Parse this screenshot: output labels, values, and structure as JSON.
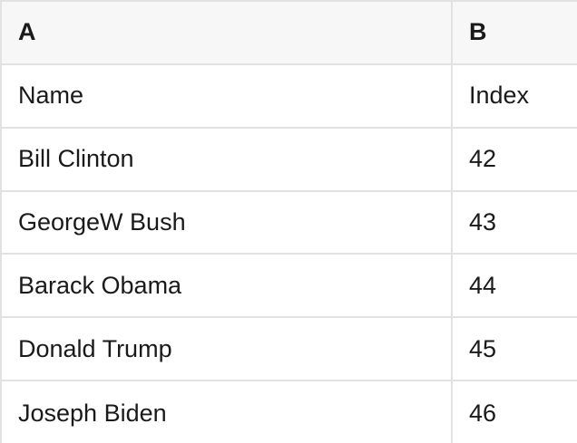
{
  "table": {
    "column_headers": [
      {
        "label": "A"
      },
      {
        "label": "B"
      }
    ],
    "rows": [
      {
        "a": "Name",
        "b": "Index"
      },
      {
        "a": "Bill Clinton",
        "b": "42"
      },
      {
        "a": "GeorgeW Bush",
        "b": "43"
      },
      {
        "a": "Barack Obama",
        "b": "44"
      },
      {
        "a": "Donald Trump",
        "b": "45"
      },
      {
        "a": "Joseph Biden",
        "b": "46"
      }
    ]
  },
  "colors": {
    "header_background": "#f7f7f7",
    "gridline": "#e2e2e2",
    "text": "#1a1a1a",
    "cell_background": "#ffffff"
  }
}
